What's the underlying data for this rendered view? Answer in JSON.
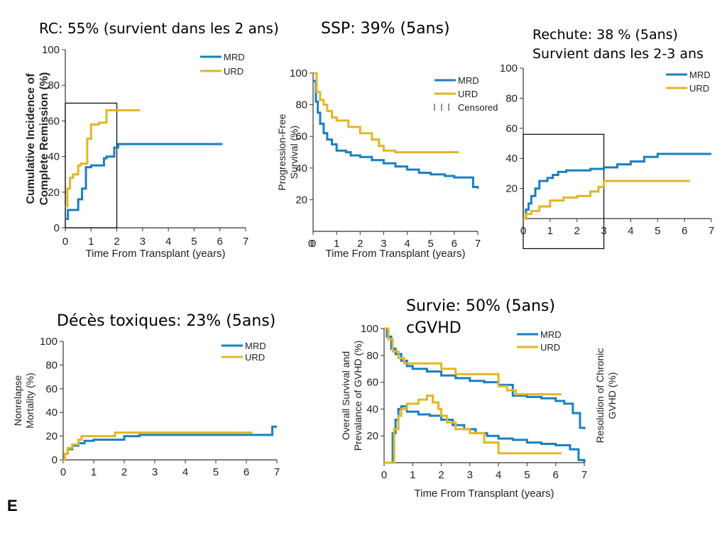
{
  "annotations": {
    "rc": "RC: 55% (survient dans les 2 ans)",
    "ssp": "SSP: 39% (5ans)",
    "rechute_line1": "Rechute: 38 % (5ans)",
    "rechute_line2": "Survient dans les 2-3 ans",
    "deces": "Décès toxiques: 23% (5ans)",
    "survie_line1": "Survie: 50% (5ans)",
    "survie_line2": "cGVHD"
  },
  "panel_letter": "E",
  "colors": {
    "MRD": "#1a7fc1",
    "URD": "#e3b625"
  },
  "chart_data": [
    {
      "type": "line",
      "id": "remission",
      "xlabel": "Time From Transplant (years)",
      "ylabel": "Cumulative Incidence of Complete Remission (%)",
      "ylabel_lines": [
        "Cumulative Incidence of",
        "Complete Remission (%)"
      ],
      "xlim": [
        0,
        7
      ],
      "ylim": [
        0,
        100
      ],
      "xticks": [
        0,
        1,
        2,
        3,
        4,
        5,
        6,
        7
      ],
      "yticks": [
        0,
        20,
        40,
        60,
        80,
        100
      ],
      "legend": [
        "MRD",
        "URD"
      ],
      "highlight_box": {
        "x": [
          0,
          2
        ],
        "y": [
          0,
          70
        ]
      },
      "series": [
        {
          "name": "MRD",
          "x": [
            0,
            0.1,
            0.2,
            0.5,
            0.65,
            0.8,
            1.0,
            1.5,
            1.6,
            1.9,
            2.05,
            6.1
          ],
          "y": [
            5,
            10,
            10,
            16,
            22,
            34,
            35,
            39,
            40,
            45,
            47,
            47
          ]
        },
        {
          "name": "URD",
          "x": [
            0,
            0.08,
            0.18,
            0.3,
            0.5,
            0.6,
            0.85,
            1.0,
            1.3,
            1.6,
            2.1,
            2.9
          ],
          "y": [
            12,
            22,
            28,
            30,
            35,
            36,
            50,
            58,
            59,
            66,
            66,
            66
          ]
        }
      ]
    },
    {
      "type": "line",
      "id": "pfs",
      "xlabel": "Time From Transplant (years)",
      "ylabel": "Progression-Free Survival (%)",
      "ylabel_lines": [
        "Progression-Free",
        "Survival (%)"
      ],
      "xlim": [
        0,
        7
      ],
      "ylim": [
        0,
        100
      ],
      "xticks": [
        0,
        1,
        2,
        3,
        4,
        5,
        6,
        7
      ],
      "yticks": [
        20,
        40,
        60,
        80,
        100
      ],
      "yzero_label": "0",
      "legend": [
        "MRD",
        "URD",
        "Censored"
      ],
      "series": [
        {
          "name": "MRD",
          "x": [
            0,
            0.12,
            0.2,
            0.3,
            0.45,
            0.6,
            0.8,
            1.0,
            1.4,
            1.6,
            2.0,
            2.5,
            3.0,
            3.5,
            4.0,
            4.5,
            5.0,
            5.6,
            6.0,
            6.8,
            7.0
          ],
          "y": [
            95,
            82,
            75,
            68,
            62,
            58,
            55,
            51,
            50,
            48,
            47,
            45,
            43,
            41,
            39,
            37,
            36,
            35,
            34,
            28,
            27
          ]
        },
        {
          "name": "URD",
          "x": [
            0,
            0.15,
            0.3,
            0.45,
            0.6,
            0.8,
            1.0,
            1.5,
            2.0,
            2.5,
            2.8,
            3.0,
            3.5,
            4.0,
            5.0,
            6.2
          ],
          "y": [
            100,
            88,
            83,
            80,
            76,
            72,
            70,
            66,
            62,
            58,
            54,
            51,
            50,
            50,
            50,
            50
          ]
        }
      ]
    },
    {
      "type": "line",
      "id": "relapse",
      "xlabel": "",
      "ylabel": "",
      "xlim": [
        0,
        7
      ],
      "ylim": [
        0,
        100
      ],
      "xticks": [
        0,
        1,
        2,
        3,
        4,
        5,
        6,
        7
      ],
      "yticks": [
        20,
        40,
        60,
        80,
        100
      ],
      "legend": [
        "MRD",
        "URD"
      ],
      "highlight_box": {
        "x": [
          0,
          3
        ],
        "y": [
          -20,
          56
        ]
      },
      "series": [
        {
          "name": "MRD",
          "x": [
            0,
            0.1,
            0.2,
            0.3,
            0.45,
            0.6,
            0.9,
            1.1,
            1.3,
            1.6,
            2.0,
            2.5,
            3.0,
            3.5,
            4.0,
            4.5,
            5.0,
            7.0
          ],
          "y": [
            0,
            6,
            10,
            15,
            20,
            25,
            27,
            29,
            31,
            32,
            32,
            33,
            34,
            36,
            38,
            41,
            43,
            43
          ]
        },
        {
          "name": "URD",
          "x": [
            0,
            0.1,
            0.3,
            0.6,
            1.0,
            1.5,
            2.0,
            2.5,
            2.8,
            3.0,
            6.2
          ],
          "y": [
            0,
            3,
            5,
            8,
            12,
            14,
            15,
            18,
            21,
            25,
            25
          ]
        }
      ]
    },
    {
      "type": "line",
      "id": "nrm",
      "xlabel": "",
      "ylabel": "Nonrelapse Mortality (%)",
      "ylabel_lines": [
        "Nonrelapse",
        "Mortality (%)"
      ],
      "xlim": [
        0,
        7
      ],
      "ylim": [
        0,
        100
      ],
      "xticks": [
        0,
        1,
        2,
        3,
        4,
        5,
        6,
        7
      ],
      "yticks": [
        0,
        20,
        40,
        60,
        80,
        100
      ],
      "legend": [
        "MRD",
        "URD"
      ],
      "series": [
        {
          "name": "MRD",
          "x": [
            0,
            0.05,
            0.15,
            0.3,
            0.5,
            0.7,
            1.0,
            2.0,
            2.5,
            6.7,
            6.85,
            7.0
          ],
          "y": [
            0,
            5,
            9,
            12,
            14,
            16,
            17,
            20,
            21,
            21,
            28,
            28
          ]
        },
        {
          "name": "URD",
          "x": [
            0,
            0.05,
            0.15,
            0.3,
            0.5,
            0.6,
            1.0,
            1.7,
            2.5,
            6.2
          ],
          "y": [
            0,
            5,
            10,
            13,
            17,
            20,
            20,
            23,
            23,
            23
          ]
        }
      ]
    },
    {
      "type": "line",
      "id": "os_gvhd",
      "xlabel": "Time From Transplant (years)",
      "ylabel": "Overall Survival and Prevalance of GVHD (%)",
      "ylabel_lines": [
        "Overall Survival  and",
        "Prevalance of GVHD (%)"
      ],
      "ylabel_right": "Resolution of Chronic GVHD (%)",
      "ylabel_right_lines": [
        "Resolution of Chronic",
        "GVHD (%)"
      ],
      "xlim": [
        0,
        7
      ],
      "ylim": [
        0,
        100
      ],
      "xticks": [
        0,
        1,
        2,
        3,
        4,
        5,
        6,
        7
      ],
      "yticks": [
        20,
        40,
        60,
        80,
        100
      ],
      "legend": [
        "MRD",
        "URD"
      ],
      "series": [
        {
          "name": "MRD",
          "x": [
            0,
            0.1,
            0.25,
            0.4,
            0.6,
            0.8,
            1.0,
            1.5,
            2.0,
            2.5,
            3.0,
            3.5,
            4.0,
            4.5,
            5.0,
            5.5,
            6.0,
            6.3,
            6.6,
            6.85,
            7.0
          ],
          "y": [
            100,
            94,
            85,
            81,
            76,
            72,
            70,
            68,
            65,
            63,
            61,
            60,
            58,
            50,
            49,
            48,
            46,
            44,
            37,
            26,
            25
          ]
        },
        {
          "name": "URD",
          "x": [
            0,
            0.15,
            0.3,
            0.5,
            0.7,
            1.0,
            2.0,
            2.5,
            3.0,
            3.5,
            4.0,
            4.3,
            4.6,
            6.2
          ],
          "y": [
            100,
            92,
            83,
            78,
            74,
            74,
            70,
            66,
            66,
            66,
            57,
            54,
            51,
            51
          ]
        },
        {
          "name": "MRD",
          "x": [
            0,
            0.2,
            0.3,
            0.4,
            0.5,
            0.6,
            0.8,
            1.2,
            1.6,
            2.0,
            2.4,
            2.8,
            3.2,
            3.6,
            4.0,
            4.5,
            5.0,
            5.5,
            6.0,
            6.5,
            6.8,
            7.0
          ],
          "y": [
            0,
            0,
            22,
            32,
            40,
            42,
            38,
            36,
            35,
            32,
            28,
            25,
            22,
            20,
            18,
            17,
            15,
            14,
            13,
            10,
            2,
            0
          ]
        },
        {
          "name": "URD",
          "x": [
            0,
            0.25,
            0.35,
            0.5,
            0.6,
            0.8,
            1.2,
            1.5,
            1.7,
            1.9,
            2.0,
            2.2,
            2.5,
            3.0,
            3.5,
            4.0,
            5.0,
            6.0,
            6.2
          ],
          "y": [
            0,
            0,
            25,
            35,
            40,
            44,
            47,
            50,
            45,
            40,
            35,
            30,
            25,
            22,
            15,
            7,
            7,
            7,
            7
          ]
        }
      ]
    }
  ]
}
